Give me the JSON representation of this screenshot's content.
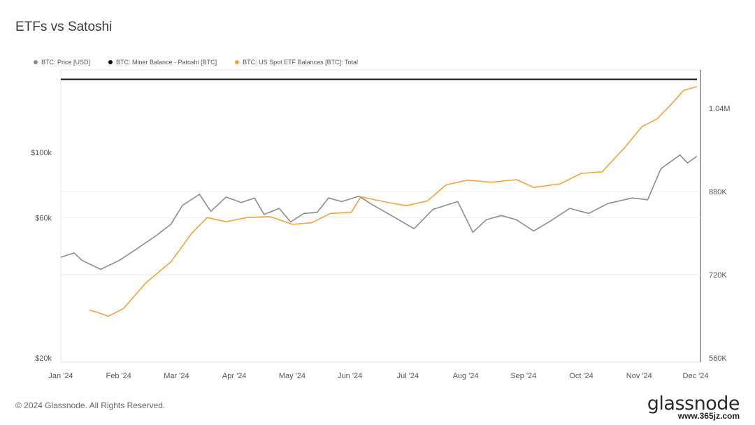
{
  "chart_data": {
    "type": "line",
    "title": "ETFs vs Satoshi",
    "x_ticks": [
      "Jan '24",
      "Feb '24",
      "Mar '24",
      "Apr '24",
      "May '24",
      "Jun '24",
      "Jul '24",
      "Aug '24",
      "Sep '24",
      "Oct '24",
      "Nov '24",
      "Dec '24"
    ],
    "y_left": {
      "ticks": [
        "$20k",
        "$60k",
        "$100k"
      ],
      "values": [
        20000,
        60000,
        100000
      ],
      "scale": "log"
    },
    "y_right": {
      "ticks": [
        "560K",
        "720K",
        "880K",
        "1.04M"
      ],
      "values": [
        560000,
        720000,
        880000,
        1040000
      ],
      "range": [
        560000,
        1090000
      ]
    },
    "legend_placement": "top-left",
    "series": [
      {
        "name": "BTC: Price [USD]",
        "color": "#8c8c8c",
        "axis": "left",
        "points": [
          [
            "2024-01-01",
            44000
          ],
          [
            "2024-01-08",
            45500
          ],
          [
            "2024-01-12",
            43000
          ],
          [
            "2024-01-22",
            40000
          ],
          [
            "2024-02-01",
            43000
          ],
          [
            "2024-02-10",
            47000
          ],
          [
            "2024-02-20",
            52000
          ],
          [
            "2024-02-28",
            57000
          ],
          [
            "2024-03-05",
            66000
          ],
          [
            "2024-03-14",
            72000
          ],
          [
            "2024-03-20",
            63000
          ],
          [
            "2024-03-28",
            70500
          ],
          [
            "2024-04-05",
            67500
          ],
          [
            "2024-04-12",
            70000
          ],
          [
            "2024-04-17",
            61500
          ],
          [
            "2024-04-25",
            64500
          ],
          [
            "2024-05-01",
            58000
          ],
          [
            "2024-05-08",
            62000
          ],
          [
            "2024-05-15",
            62500
          ],
          [
            "2024-05-21",
            70000
          ],
          [
            "2024-05-28",
            68000
          ],
          [
            "2024-06-06",
            71000
          ],
          [
            "2024-06-12",
            67000
          ],
          [
            "2024-06-24",
            60500
          ],
          [
            "2024-07-05",
            55000
          ],
          [
            "2024-07-15",
            64000
          ],
          [
            "2024-07-28",
            68000
          ],
          [
            "2024-08-05",
            53500
          ],
          [
            "2024-08-12",
            59000
          ],
          [
            "2024-08-20",
            61000
          ],
          [
            "2024-08-28",
            59000
          ],
          [
            "2024-09-06",
            54000
          ],
          [
            "2024-09-15",
            58500
          ],
          [
            "2024-09-25",
            64500
          ],
          [
            "2024-10-05",
            62000
          ],
          [
            "2024-10-15",
            67000
          ],
          [
            "2024-10-28",
            70000
          ],
          [
            "2024-11-05",
            69000
          ],
          [
            "2024-11-12",
            88000
          ],
          [
            "2024-11-22",
            98000
          ],
          [
            "2024-11-26",
            92000
          ],
          [
            "2024-12-01",
            97000
          ]
        ]
      },
      {
        "name": "BTC: Miner Balance - Patoshi [BTC]",
        "color": "#111111",
        "axis": "right",
        "points": [
          [
            "2024-01-01",
            1096000
          ],
          [
            "2024-12-01",
            1096000
          ]
        ]
      },
      {
        "name": "BTC: US Spot ETF Balances [BTC]: Total",
        "color": "#f2a33a",
        "axis": "right",
        "points": [
          [
            "2024-01-16",
            652000
          ],
          [
            "2024-01-20",
            648000
          ],
          [
            "2024-01-26",
            640000
          ],
          [
            "2024-02-03",
            655000
          ],
          [
            "2024-02-15",
            705000
          ],
          [
            "2024-02-28",
            745000
          ],
          [
            "2024-03-10",
            800000
          ],
          [
            "2024-03-18",
            830000
          ],
          [
            "2024-03-28",
            822000
          ],
          [
            "2024-04-08",
            830000
          ],
          [
            "2024-04-20",
            832000
          ],
          [
            "2024-05-02",
            817000
          ],
          [
            "2024-05-12",
            820000
          ],
          [
            "2024-05-22",
            838000
          ],
          [
            "2024-06-02",
            840000
          ],
          [
            "2024-06-07",
            870000
          ],
          [
            "2024-06-20",
            860000
          ],
          [
            "2024-07-01",
            853000
          ],
          [
            "2024-07-12",
            862000
          ],
          [
            "2024-07-22",
            893000
          ],
          [
            "2024-08-02",
            902000
          ],
          [
            "2024-08-15",
            898000
          ],
          [
            "2024-08-28",
            903000
          ],
          [
            "2024-09-06",
            888000
          ],
          [
            "2024-09-20",
            895000
          ],
          [
            "2024-10-01",
            915000
          ],
          [
            "2024-10-12",
            918000
          ],
          [
            "2024-10-24",
            965000
          ],
          [
            "2024-11-02",
            1005000
          ],
          [
            "2024-11-10",
            1020000
          ],
          [
            "2024-11-18",
            1050000
          ],
          [
            "2024-11-24",
            1075000
          ],
          [
            "2024-12-01",
            1082000
          ]
        ]
      }
    ]
  },
  "footer": {
    "copyright": "© 2024 Glassnode. All Rights Reserved."
  },
  "branding": {
    "logo": "glassnode",
    "watermark": "www.365jz.com"
  }
}
